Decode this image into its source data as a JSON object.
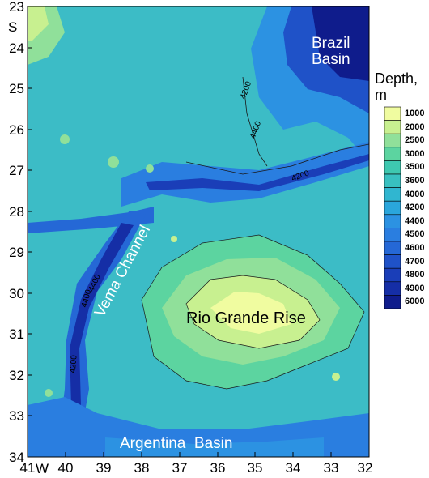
{
  "map": {
    "lat_ticks": [
      "23",
      "24",
      "25",
      "26",
      "27",
      "28",
      "29",
      "30",
      "31",
      "32",
      "33",
      "34"
    ],
    "lat_hemisphere": "S",
    "lon_ticks": [
      "41",
      "40",
      "39",
      "38",
      "37",
      "36",
      "35",
      "34",
      "33",
      "32"
    ],
    "lon_hemisphere": "W",
    "features": {
      "brazil_basin": [
        "Brazil",
        "Basin"
      ],
      "vema_channel": "Vema Channel",
      "rio_grande_rise": "Rio Grande Rise",
      "argentina_basin": "Argentina  Basin"
    },
    "contour_labels": [
      "4200",
      "4400",
      "4200",
      "4400",
      "4400",
      "4200"
    ]
  },
  "legend": {
    "title_line1": "Depth,",
    "title_line2": "m",
    "levels": [
      {
        "label": "1000",
        "color": "#f0fca0"
      },
      {
        "label": "2000",
        "color": "#c8f090"
      },
      {
        "label": "2500",
        "color": "#90e09a"
      },
      {
        "label": "3000",
        "color": "#5cd4a0"
      },
      {
        "label": "3500",
        "color": "#3ec8b0"
      },
      {
        "label": "3600",
        "color": "#38c0c0"
      },
      {
        "label": "4000",
        "color": "#30b6d0"
      },
      {
        "label": "4200",
        "color": "#2aa6dc"
      },
      {
        "label": "4400",
        "color": "#2c92e2"
      },
      {
        "label": "4500",
        "color": "#2a7ee0"
      },
      {
        "label": "4600",
        "color": "#2568d6"
      },
      {
        "label": "4700",
        "color": "#1f52c8"
      },
      {
        "label": "4800",
        "color": "#1a3eb8"
      },
      {
        "label": "4900",
        "color": "#152ea6"
      },
      {
        "label": "6000",
        "color": "#0f1c8c"
      }
    ]
  }
}
